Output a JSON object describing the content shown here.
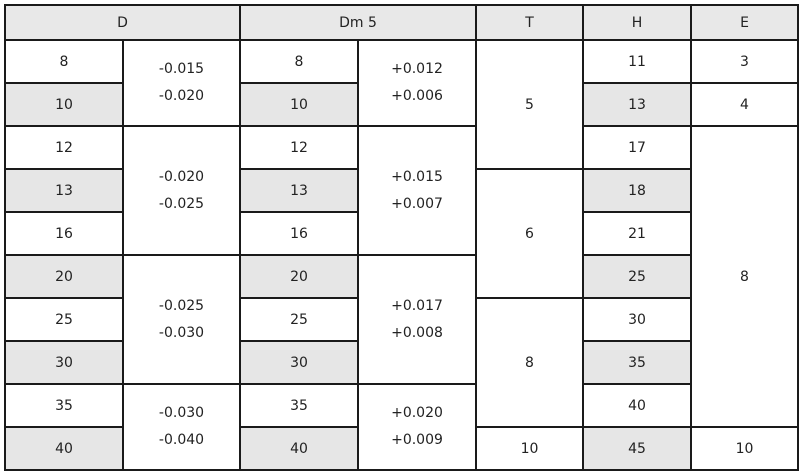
{
  "headers": [
    "D",
    "Dm 5",
    "T",
    "H",
    "E"
  ],
  "rows": [
    {
      "d": "8",
      "dm": "8",
      "h": "11"
    },
    {
      "d": "10",
      "dm": "10",
      "h": "13"
    },
    {
      "d": "12",
      "dm": "12",
      "h": "17"
    },
    {
      "d": "13",
      "dm": "13",
      "h": "18"
    },
    {
      "d": "16",
      "dm": "16",
      "h": "21"
    },
    {
      "d": "20",
      "dm": "20",
      "h": "25"
    },
    {
      "d": "25",
      "dm": "25",
      "h": "30"
    },
    {
      "d": "30",
      "dm": "30",
      "h": "35"
    },
    {
      "d": "35",
      "dm": "35",
      "h": "40"
    },
    {
      "d": "40",
      "dm": "40",
      "h": "45"
    }
  ],
  "d_tolerances": [
    {
      "upper": "-0.015",
      "lower": "-0.020"
    },
    {
      "upper": "-0.020",
      "lower": "-0.025"
    },
    {
      "upper": "-0.025",
      "lower": "-0.030"
    },
    {
      "upper": "-0.030",
      "lower": "-0.040"
    }
  ],
  "dm_tolerances": [
    {
      "upper": "+0.012",
      "lower": "+0.006"
    },
    {
      "upper": "+0.015",
      "lower": "+0.007"
    },
    {
      "upper": "+0.017",
      "lower": "+0.008"
    },
    {
      "upper": "+0.020",
      "lower": "+0.009"
    }
  ],
  "t_values": [
    "5",
    "6",
    "8",
    "10"
  ],
  "e_values": [
    "3",
    "4",
    "8",
    "10"
  ],
  "colors": {
    "shade": "#e6e6e6",
    "border": "#1a1a1a"
  }
}
